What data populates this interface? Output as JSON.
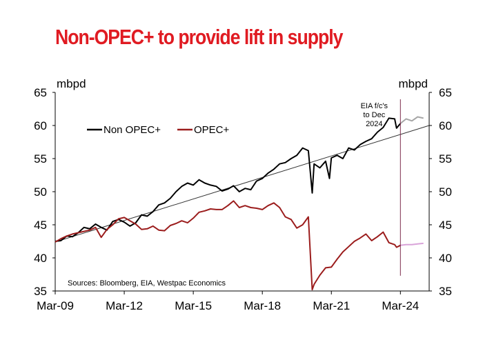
{
  "title": "Non-OPEC+ to provide lift in supply",
  "chart_data": {
    "type": "line",
    "y_unit_left": "mbpd",
    "y_unit_right": "mbpd",
    "ylim": [
      35,
      65
    ],
    "y_ticks": [
      "35",
      "40",
      "45",
      "50",
      "55",
      "60",
      "65"
    ],
    "x_range": [
      "2009-03",
      "2025-06"
    ],
    "x_ticks": [
      {
        "date": "2009-03",
        "label": "Mar-09"
      },
      {
        "date": "2012-03",
        "label": "Mar-12"
      },
      {
        "date": "2015-03",
        "label": "Mar-15"
      },
      {
        "date": "2018-03",
        "label": "Mar-18"
      },
      {
        "date": "2021-03",
        "label": "Mar-21"
      },
      {
        "date": "2024-03",
        "label": "Mar-24"
      }
    ],
    "grid": false,
    "legend": "top-left",
    "forecast_start": "2024-03",
    "forecast_label": [
      "EIA f/c's",
      "to Dec",
      "2024"
    ],
    "source": "Sources: Bloomberg, EIA, Westpac Economics",
    "series": [
      {
        "name": "Non OPEC+",
        "color": "#000000",
        "forecast_color": "#a6a6a6",
        "points": [
          [
            "2009-03",
            42.5
          ],
          [
            "2009-06",
            42.6
          ],
          [
            "2009-09",
            43.3
          ],
          [
            "2009-12",
            43.2
          ],
          [
            "2010-03",
            43.8
          ],
          [
            "2010-06",
            44.6
          ],
          [
            "2010-09",
            44.4
          ],
          [
            "2010-12",
            45.1
          ],
          [
            "2011-03",
            44.6
          ],
          [
            "2011-06",
            44.2
          ],
          [
            "2011-09",
            45.5
          ],
          [
            "2011-12",
            45.8
          ],
          [
            "2012-03",
            45.4
          ],
          [
            "2012-06",
            44.8
          ],
          [
            "2012-09",
            45.3
          ],
          [
            "2012-12",
            46.5
          ],
          [
            "2013-03",
            46.3
          ],
          [
            "2013-06",
            47.0
          ],
          [
            "2013-09",
            48.0
          ],
          [
            "2013-12",
            48.3
          ],
          [
            "2014-03",
            49.0
          ],
          [
            "2014-06",
            50.0
          ],
          [
            "2014-09",
            50.8
          ],
          [
            "2014-12",
            51.3
          ],
          [
            "2015-03",
            51.0
          ],
          [
            "2015-06",
            51.8
          ],
          [
            "2015-09",
            51.3
          ],
          [
            "2015-12",
            51.0
          ],
          [
            "2016-03",
            50.8
          ],
          [
            "2016-06",
            50.1
          ],
          [
            "2016-09",
            50.4
          ],
          [
            "2016-12",
            50.9
          ],
          [
            "2017-03",
            50.0
          ],
          [
            "2017-06",
            50.5
          ],
          [
            "2017-09",
            50.3
          ],
          [
            "2017-12",
            51.6
          ],
          [
            "2018-03",
            52.0
          ],
          [
            "2018-06",
            52.8
          ],
          [
            "2018-09",
            53.4
          ],
          [
            "2018-12",
            54.2
          ],
          [
            "2019-03",
            54.4
          ],
          [
            "2019-06",
            55.0
          ],
          [
            "2019-09",
            55.5
          ],
          [
            "2019-12",
            56.6
          ],
          [
            "2020-03",
            56.2
          ],
          [
            "2020-05",
            49.8
          ],
          [
            "2020-06",
            54.2
          ],
          [
            "2020-09",
            53.6
          ],
          [
            "2020-12",
            54.6
          ],
          [
            "2021-02",
            52.0
          ],
          [
            "2021-03",
            55.1
          ],
          [
            "2021-06",
            55.5
          ],
          [
            "2021-09",
            55.0
          ],
          [
            "2021-12",
            56.6
          ],
          [
            "2022-03",
            56.3
          ],
          [
            "2022-06",
            57.1
          ],
          [
            "2022-09",
            57.6
          ],
          [
            "2022-12",
            58.0
          ],
          [
            "2023-03",
            59.0
          ],
          [
            "2023-06",
            59.7
          ],
          [
            "2023-09",
            61.1
          ],
          [
            "2023-12",
            61.0
          ],
          [
            "2024-01",
            59.6
          ],
          [
            "2024-03",
            60.3
          ]
        ],
        "forecast": [
          [
            "2024-03",
            60.3
          ],
          [
            "2024-06",
            61.0
          ],
          [
            "2024-09",
            60.7
          ],
          [
            "2024-12",
            61.3
          ],
          [
            "2025-03",
            61.1
          ]
        ]
      },
      {
        "name": "OPEC+",
        "color": "#9b1c1c",
        "forecast_color": "#d9a3d9",
        "points": [
          [
            "2009-03",
            42.4
          ],
          [
            "2009-06",
            42.9
          ],
          [
            "2009-09",
            43.3
          ],
          [
            "2009-12",
            43.6
          ],
          [
            "2010-03",
            43.8
          ],
          [
            "2010-06",
            44.0
          ],
          [
            "2010-09",
            44.2
          ],
          [
            "2010-12",
            44.6
          ],
          [
            "2011-03",
            43.1
          ],
          [
            "2011-06",
            44.3
          ],
          [
            "2011-09",
            45.0
          ],
          [
            "2011-12",
            45.9
          ],
          [
            "2012-03",
            46.1
          ],
          [
            "2012-06",
            45.6
          ],
          [
            "2012-09",
            45.1
          ],
          [
            "2012-12",
            44.3
          ],
          [
            "2013-03",
            44.4
          ],
          [
            "2013-06",
            44.8
          ],
          [
            "2013-09",
            44.2
          ],
          [
            "2013-12",
            44.1
          ],
          [
            "2014-03",
            44.9
          ],
          [
            "2014-06",
            45.2
          ],
          [
            "2014-09",
            45.6
          ],
          [
            "2014-12",
            45.3
          ],
          [
            "2015-03",
            46.0
          ],
          [
            "2015-06",
            46.9
          ],
          [
            "2015-09",
            47.1
          ],
          [
            "2015-12",
            47.4
          ],
          [
            "2016-03",
            47.3
          ],
          [
            "2016-06",
            47.3
          ],
          [
            "2016-09",
            47.9
          ],
          [
            "2016-12",
            48.6
          ],
          [
            "2017-03",
            47.6
          ],
          [
            "2017-06",
            47.9
          ],
          [
            "2017-09",
            47.6
          ],
          [
            "2017-12",
            47.5
          ],
          [
            "2018-03",
            47.3
          ],
          [
            "2018-06",
            47.9
          ],
          [
            "2018-09",
            48.3
          ],
          [
            "2018-12",
            47.6
          ],
          [
            "2019-03",
            46.2
          ],
          [
            "2019-06",
            45.8
          ],
          [
            "2019-09",
            44.5
          ],
          [
            "2019-12",
            45.0
          ],
          [
            "2020-03",
            46.2
          ],
          [
            "2020-05",
            35.2
          ],
          [
            "2020-06",
            36.0
          ],
          [
            "2020-09",
            37.4
          ],
          [
            "2020-12",
            38.5
          ],
          [
            "2021-03",
            38.6
          ],
          [
            "2021-06",
            39.8
          ],
          [
            "2021-09",
            40.9
          ],
          [
            "2021-12",
            41.7
          ],
          [
            "2022-03",
            42.5
          ],
          [
            "2022-06",
            43.0
          ],
          [
            "2022-09",
            43.6
          ],
          [
            "2022-12",
            42.6
          ],
          [
            "2023-03",
            43.2
          ],
          [
            "2023-06",
            43.9
          ],
          [
            "2023-09",
            42.3
          ],
          [
            "2023-12",
            42.0
          ],
          [
            "2024-01",
            41.6
          ],
          [
            "2024-03",
            41.9
          ]
        ],
        "forecast": [
          [
            "2024-03",
            41.9
          ],
          [
            "2024-06",
            42.0
          ],
          [
            "2024-09",
            42.0
          ],
          [
            "2024-12",
            42.1
          ],
          [
            "2025-03",
            42.2
          ]
        ]
      }
    ],
    "trend_line": {
      "start": [
        "2009-03",
        42.4
      ],
      "end": [
        "2025-06",
        60.0
      ]
    }
  }
}
